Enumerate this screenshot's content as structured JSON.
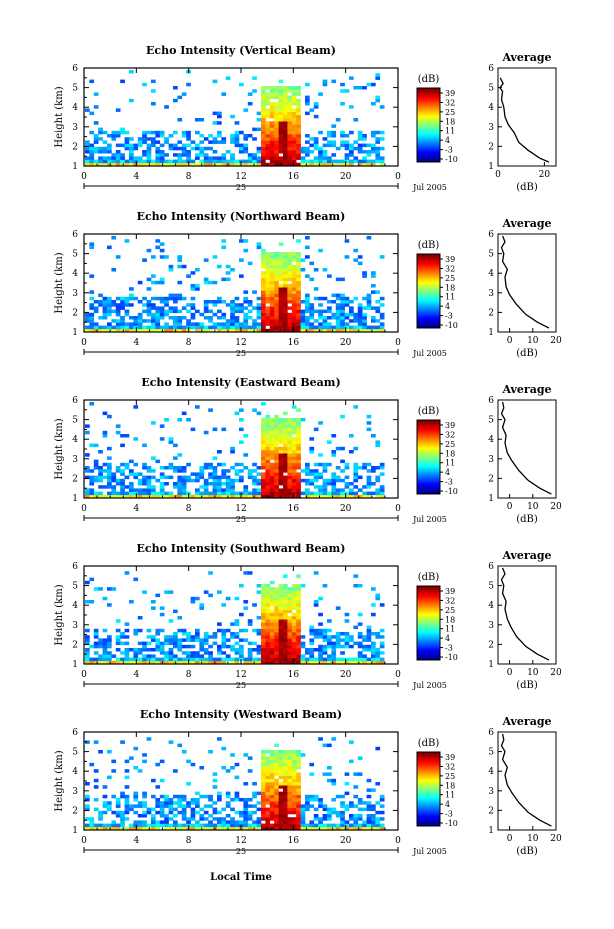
{
  "figure": {
    "xlabel_bottom": "Local Time",
    "date_day": "25",
    "date_suffix": "Jul 2005"
  },
  "chart_data": [
    {
      "type": "heatmap",
      "title": "Echo Intensity (Vertical Beam)",
      "xlabel": "",
      "ylabel": "Height (km)",
      "xlim": [
        0,
        24
      ],
      "ylim": [
        1,
        6
      ],
      "xticks": [
        "0",
        "4",
        "8",
        "12",
        "16",
        "20",
        "0"
      ],
      "yticks": [
        "1",
        "2",
        "3",
        "4",
        "5",
        "6"
      ],
      "colorbar": {
        "label": "(dB)",
        "ticks": [
          "39",
          "32",
          "25",
          "18",
          "11",
          "4",
          "-3",
          "-10"
        ],
        "range": [
          -10,
          39
        ]
      },
      "profile": {
        "title": "Average",
        "xlabel": "(dB)",
        "xlim": [
          0,
          25
        ],
        "xticks": [
          "0",
          "20"
        ],
        "x": [
          22,
          18,
          13,
          9,
          7,
          4.5,
          3,
          2.5,
          1.5,
          2,
          0.8,
          2.2,
          1
        ],
        "y": [
          1.2,
          1.4,
          1.8,
          2.2,
          2.7,
          3.1,
          3.5,
          4.0,
          4.4,
          4.8,
          5.0,
          5.2,
          5.5
        ]
      }
    },
    {
      "type": "heatmap",
      "title": "Echo Intensity (Northward Beam)",
      "xlabel": "",
      "ylabel": "Height (km)",
      "xlim": [
        0,
        24
      ],
      "ylim": [
        1,
        6
      ],
      "xticks": [
        "0",
        "4",
        "8",
        "12",
        "16",
        "20",
        "0"
      ],
      "yticks": [
        "1",
        "2",
        "3",
        "4",
        "5",
        "6"
      ],
      "colorbar": {
        "label": "(dB)",
        "ticks": [
          "39",
          "32",
          "25",
          "18",
          "11",
          "4",
          "-3",
          "-10"
        ],
        "range": [
          -10,
          39
        ]
      },
      "profile": {
        "title": "Average",
        "xlabel": "(dB)",
        "xlim": [
          -5,
          20
        ],
        "xticks": [
          "0",
          "10",
          "20"
        ],
        "x": [
          17,
          12,
          7,
          3,
          0,
          -1.5,
          -2,
          -1,
          -3,
          -2.5,
          -3.5,
          -2,
          -3
        ],
        "y": [
          1.2,
          1.5,
          1.9,
          2.4,
          2.9,
          3.3,
          3.8,
          4.2,
          4.6,
          5.0,
          5.3,
          5.6,
          5.9
        ]
      }
    },
    {
      "type": "heatmap",
      "title": "Echo Intensity (Eastward Beam)",
      "xlabel": "",
      "ylabel": "Height (km)",
      "xlim": [
        0,
        24
      ],
      "ylim": [
        1,
        6
      ],
      "xticks": [
        "0",
        "4",
        "8",
        "12",
        "16",
        "20",
        "0"
      ],
      "yticks": [
        "1",
        "2",
        "3",
        "4",
        "5",
        "6"
      ],
      "colorbar": {
        "label": "(dB)",
        "ticks": [
          "39",
          "32",
          "25",
          "18",
          "11",
          "4",
          "-3",
          "-10"
        ],
        "range": [
          -10,
          39
        ]
      },
      "profile": {
        "title": "Average",
        "xlabel": "(dB)",
        "xlim": [
          -5,
          20
        ],
        "xticks": [
          "0",
          "10",
          "20"
        ],
        "x": [
          18,
          13,
          8,
          4,
          1,
          -1,
          -2,
          -1.5,
          -3,
          -2,
          -3.5,
          -2.5,
          -3
        ],
        "y": [
          1.2,
          1.5,
          1.9,
          2.4,
          2.9,
          3.3,
          3.8,
          4.2,
          4.6,
          5.0,
          5.3,
          5.6,
          5.9
        ]
      }
    },
    {
      "type": "heatmap",
      "title": "Echo Intensity (Southward Beam)",
      "xlabel": "",
      "ylabel": "Height (km)",
      "xlim": [
        0,
        24
      ],
      "ylim": [
        1,
        6
      ],
      "xticks": [
        "0",
        "4",
        "8",
        "12",
        "16",
        "20",
        "0"
      ],
      "yticks": [
        "1",
        "2",
        "3",
        "4",
        "5",
        "6"
      ],
      "colorbar": {
        "label": "(dB)",
        "ticks": [
          "39",
          "32",
          "25",
          "18",
          "11",
          "4",
          "-3",
          "-10"
        ],
        "range": [
          -10,
          39
        ]
      },
      "profile": {
        "title": "Average",
        "xlabel": "(dB)",
        "xlim": [
          -5,
          20
        ],
        "xticks": [
          "0",
          "10",
          "20"
        ],
        "x": [
          17,
          12,
          7,
          3,
          0.5,
          -1,
          -2,
          -1.5,
          -3,
          -2.5,
          -3.5,
          -2,
          -3
        ],
        "y": [
          1.2,
          1.5,
          1.9,
          2.4,
          2.9,
          3.3,
          3.8,
          4.2,
          4.6,
          5.0,
          5.3,
          5.6,
          5.9
        ]
      }
    },
    {
      "type": "heatmap",
      "title": "Echo Intensity (Westward Beam)",
      "xlabel": "",
      "ylabel": "Height (km)",
      "xlim": [
        0,
        24
      ],
      "ylim": [
        1,
        6
      ],
      "xticks": [
        "0",
        "4",
        "8",
        "12",
        "16",
        "20",
        "0"
      ],
      "yticks": [
        "1",
        "2",
        "3",
        "4",
        "5",
        "6"
      ],
      "colorbar": {
        "label": "(dB)",
        "ticks": [
          "39",
          "32",
          "25",
          "18",
          "11",
          "4",
          "-3",
          "-10"
        ],
        "range": [
          -10,
          39
        ]
      },
      "profile": {
        "title": "Average",
        "xlabel": "(dB)",
        "xlim": [
          -5,
          20
        ],
        "xticks": [
          "0",
          "10",
          "20"
        ],
        "x": [
          18,
          13,
          8,
          4,
          1,
          -1,
          -2,
          -1,
          -3,
          -2,
          -3.5,
          -2.5,
          -3
        ],
        "y": [
          1.2,
          1.5,
          1.9,
          2.4,
          2.9,
          3.3,
          3.8,
          4.2,
          4.6,
          5.0,
          5.3,
          5.6,
          5.9
        ]
      }
    }
  ]
}
